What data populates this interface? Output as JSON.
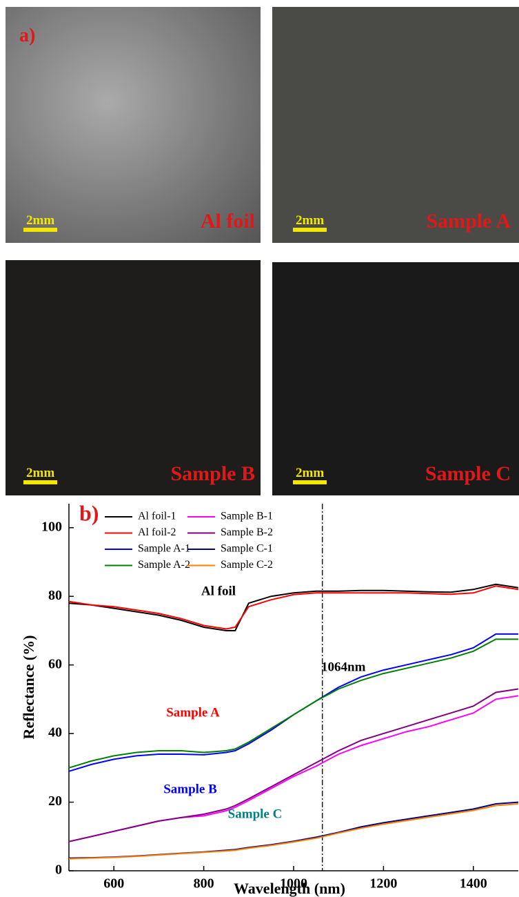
{
  "photos": {
    "label": "a)",
    "panels": [
      {
        "name": "Al foil",
        "scale": "2mm"
      },
      {
        "name": "Sample A",
        "scale": "2mm"
      },
      {
        "name": "Sample B",
        "scale": "2mm"
      },
      {
        "name": "Sample C",
        "scale": "2mm"
      }
    ]
  },
  "chart_data": {
    "type": "line",
    "panel_label": "b)",
    "xlabel": "Wavelength (nm)",
    "ylabel": "Reflectance (%)",
    "x": [
      500,
      550,
      600,
      650,
      700,
      750,
      800,
      850,
      870,
      900,
      950,
      1000,
      1050,
      1100,
      1150,
      1200,
      1250,
      1300,
      1350,
      1400,
      1450,
      1500
    ],
    "series": [
      {
        "name": "Al foil-1",
        "color": "#000000",
        "values": [
          78,
          77.5,
          76.5,
          75.5,
          74.5,
          73,
          71,
          70,
          70,
          78,
          80,
          81,
          81.5,
          81.5,
          81.7,
          81.7,
          81.5,
          81.3,
          81.2,
          82,
          83.5,
          82.5
        ]
      },
      {
        "name": "Al foil-2",
        "color": "#ff0000",
        "values": [
          78.5,
          77.5,
          77,
          76,
          75,
          73.5,
          71.5,
          70.5,
          71,
          77,
          79,
          80.5,
          81,
          81,
          81,
          81,
          81,
          80.8,
          80.6,
          81,
          83,
          82
        ]
      },
      {
        "name": "Sample A-1",
        "color": "#0000ff",
        "values": [
          29,
          31,
          32.5,
          33.5,
          34,
          34,
          33.8,
          34.5,
          35,
          37,
          41,
          45.5,
          49.5,
          53.5,
          56.5,
          58.5,
          60,
          61.5,
          63,
          65,
          69,
          69
        ]
      },
      {
        "name": "Sample A-2",
        "color": "#008000",
        "values": [
          30,
          32,
          33.5,
          34.5,
          35,
          35,
          34.5,
          35,
          35.5,
          37.5,
          41.5,
          45.5,
          49.5,
          53,
          55.5,
          57.5,
          59,
          60.5,
          62,
          64,
          67.5,
          67.5
        ]
      },
      {
        "name": "Sample B-1",
        "color": "#ff00ff",
        "values": [
          8.5,
          10,
          11.5,
          13,
          14.5,
          15.5,
          16,
          17.5,
          18.5,
          20.5,
          24,
          27.5,
          30.5,
          34,
          36.5,
          38.5,
          40.5,
          42,
          44,
          46,
          50,
          51
        ]
      },
      {
        "name": "Sample B-2",
        "color": "#800080",
        "values": [
          8.5,
          10,
          11.5,
          13,
          14.5,
          15.5,
          16.5,
          18,
          19,
          21,
          24.5,
          28,
          31.5,
          35,
          38,
          40,
          42,
          44,
          46,
          48,
          52,
          53
        ]
      },
      {
        "name": "Sample C-1",
        "color": "#000080",
        "values": [
          3.7,
          3.8,
          4,
          4.3,
          4.7,
          5.1,
          5.5,
          6,
          6.2,
          6.8,
          7.6,
          8.6,
          9.8,
          11.2,
          12.8,
          14,
          15,
          16,
          17,
          18,
          19.5,
          20
        ]
      },
      {
        "name": "Sample C-2",
        "color": "#ff8000",
        "values": [
          3.5,
          3.7,
          3.9,
          4.2,
          4.6,
          5,
          5.4,
          5.8,
          6,
          6.6,
          7.4,
          8.4,
          9.5,
          11,
          12.4,
          13.6,
          14.6,
          15.6,
          16.6,
          17.6,
          19,
          19.5
        ]
      }
    ],
    "xlim": [
      500,
      1500
    ],
    "ylim": [
      0,
      107
    ],
    "xticks": [
      600,
      800,
      1000,
      1200,
      1400
    ],
    "yticks": [
      0,
      20,
      40,
      60,
      80,
      100
    ],
    "vline": 1064,
    "annotations": [
      {
        "text": "Al foil",
        "color": "#000000"
      },
      {
        "text": "Sample A",
        "color": "#ff0000"
      },
      {
        "text": "Sample B",
        "color": "#0000ff"
      },
      {
        "text": "Sample C",
        "color": "#008080"
      },
      {
        "text": "1064nm",
        "color": "#000000"
      }
    ]
  }
}
